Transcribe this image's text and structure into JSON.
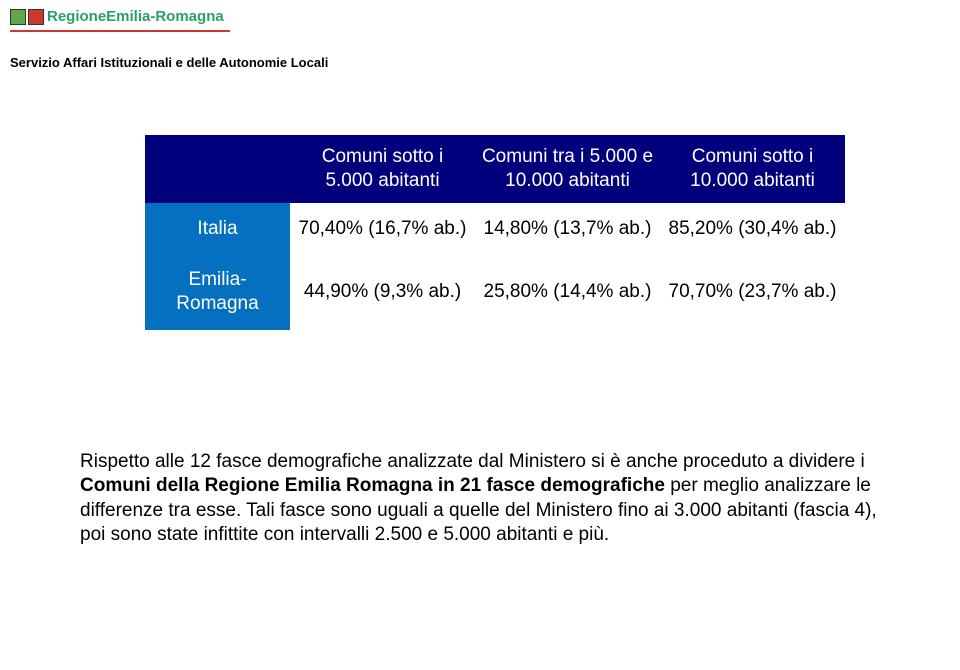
{
  "logo": {
    "text": "RegioneEmilia-Romagna",
    "squares": [
      "#5fa84a",
      "#c93a2e"
    ],
    "line_color": "#c93a2e",
    "text_color": "#2aa069"
  },
  "subtitle": "Servizio Affari Istituzionali e delle Autonomie Locali",
  "table": {
    "header_bg": "#00007c",
    "header_fg": "#ffffff",
    "rowhead_bg": "#0670c0",
    "rowhead_fg": "#ffffff",
    "cell_bg": "#ffffff",
    "cell_fg": "#000000",
    "columns": [
      "",
      "Comuni sotto i 5.000 abitanti",
      "Comuni tra i 5.000 e 10.000 abitanti",
      "Comuni sotto i 10.000 abitanti"
    ],
    "rows": [
      {
        "label": "Italia",
        "cells": [
          "70,40% (16,7% ab.)",
          "14,80% (13,7% ab.)",
          "85,20% (30,4% ab.)"
        ]
      },
      {
        "label": "Emilia-Romagna",
        "cells": [
          "44,90% (9,3% ab.)",
          "25,80% (14,4% ab.)",
          "70,70% (23,7% ab.)"
        ]
      }
    ]
  },
  "paragraph": {
    "p1": "Rispetto alle 12 fasce demografiche analizzate dal Ministero si è anche proceduto a dividere i ",
    "b1": "Comuni della Regione Emilia Romagna in 21 fasce demografiche",
    "p2": " per meglio analizzare le differenze tra esse. Tali fasce sono uguali a quelle del Ministero fino ai 3.000 abitanti (fascia 4), poi sono state infittite con intervalli 2.500 e 5.000 abitanti e più."
  }
}
